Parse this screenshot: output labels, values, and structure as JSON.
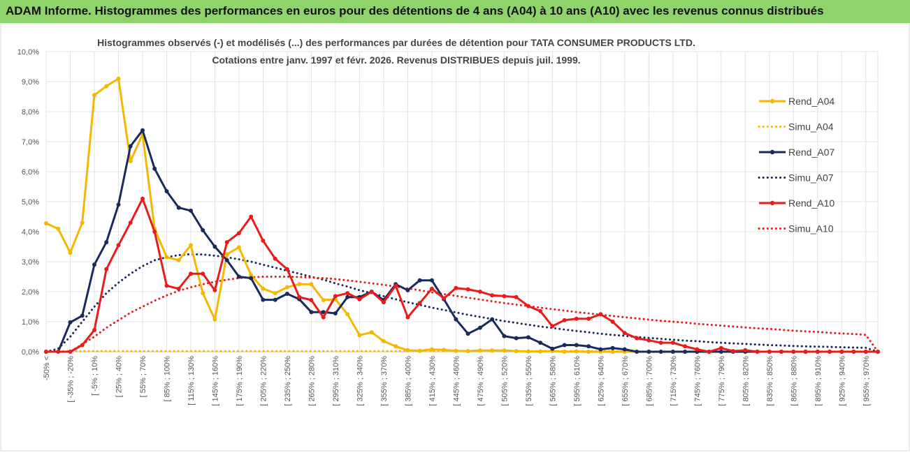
{
  "banner": {
    "title": "ADAM Informe. Histogrammes des performances en euros pour des détentions de 4 ans (A04) à 10 ans (A10) avec les revenus connus distribués"
  },
  "chart_data": {
    "type": "line",
    "title": "Histogrammes observés (-) et modélisés (...) des performances par durées de détention pour TATA CONSUMER PRODUCTS LTD.",
    "subtitle": "Cotations entre janv. 1997 et févr. 2026. Revenus DISTRIBUES depuis juil. 1999.",
    "xlabel": "",
    "ylabel": "",
    "ylim": [
      0,
      10
    ],
    "yticks": [
      "0,0%",
      "1,0%",
      "2,0%",
      "3,0%",
      "4,0%",
      "5,0%",
      "6,0%",
      "7,0%",
      "8,0%",
      "9,0%",
      "10,0%"
    ],
    "xticks": [
      "-50% <",
      "[ -35% ; -20%",
      "[ -5% ; 10%",
      "[ 25% ; 40%",
      "[ 55% ; 70%",
      "[ 85% ; 100%",
      "[ 115% ; 130%",
      "[ 145% ; 160%",
      "[ 175% ; 190%",
      "[ 205% ; 220%",
      "[ 235% ; 250%",
      "[ 265% ; 280%",
      "[ 295% ; 310%",
      "[ 325% ; 340%",
      "[ 355% ; 370%",
      "[ 385% ; 400%",
      "[ 415% ; 430%",
      "[ 445% ; 460%",
      "[ 475% ; 490%",
      "[ 505% ; 520%",
      "[ 535% ; 550%",
      "[ 565% ; 580%",
      "[ 595% ; 610%",
      "[ 625% ; 640%",
      "[ 655% ; 670%",
      "[ 685% ; 700%",
      "[ 715% ; 730%",
      "[ 745% ; 760%",
      "[ 775% ; 790%",
      "[ 805% ; 820%",
      "[ 835% ; 850%",
      "[ 865% ; 880%",
      "[ 895% ; 910%",
      "[ 925% ; 940%",
      "[ 955% ; 970%"
    ],
    "legend_position": "right",
    "series": [
      {
        "name": "Rend_A04",
        "color": "#f5b800",
        "style": "solid",
        "markers": true,
        "values": [
          4.28,
          4.1,
          3.3,
          4.3,
          8.55,
          8.85,
          9.1,
          6.35,
          7.25,
          4.1,
          3.15,
          3.05,
          3.55,
          1.95,
          1.08,
          3.25,
          3.48,
          2.55,
          2.1,
          1.95,
          2.15,
          2.25,
          2.25,
          1.72,
          1.75,
          1.25,
          0.55,
          0.65,
          0.35,
          0.18,
          0.05,
          0.03,
          0.08,
          0.06,
          0.03,
          0.02,
          0.04,
          0.04,
          0.04,
          0.02,
          0.01,
          0.01,
          0.02,
          0.0,
          0.01,
          0.0,
          0.0,
          0.0,
          0.0,
          0.0,
          0.0,
          0.0,
          0.0,
          0.0,
          0.0,
          0.0,
          0.0,
          0.0,
          0.0,
          0.0,
          0.0,
          0.0,
          0.0,
          0.0,
          0.0,
          0.0,
          0.0,
          0.0,
          0.0,
          0.0
        ]
      },
      {
        "name": "Simu_A04",
        "color": "#f5b800",
        "style": "dotted",
        "markers": false,
        "values": [
          0.02,
          0.02,
          0.02,
          0.02,
          0.02,
          0.02,
          0.02,
          0.02,
          0.02,
          0.02,
          0.02,
          0.02,
          0.02,
          0.02,
          0.02,
          0.02,
          0.02,
          0.02,
          0.02,
          0.02,
          0.02,
          0.02,
          0.02,
          0.02,
          0.02,
          0.02,
          0.02,
          0.02,
          0.02,
          0.02,
          0.02,
          0.02,
          0.02,
          0.02,
          0.02,
          0.02,
          0.02,
          0.02,
          0.02,
          0.02,
          0.02,
          0.02,
          0.02,
          0.02,
          0.02,
          0.02,
          0.02,
          0.02,
          0.01,
          0.01,
          0.01,
          0.01,
          0.01,
          0.01,
          0.01,
          0.01,
          0.01,
          0.01,
          0.01,
          0.01,
          0.01,
          0.01,
          0.01,
          0.01,
          0.01,
          0.01,
          0.01,
          0.01,
          0.01,
          0.01
        ]
      },
      {
        "name": "Rend_A07",
        "color": "#1a2a5a",
        "style": "solid",
        "markers": true,
        "values": [
          0.0,
          0.0,
          0.98,
          1.2,
          2.9,
          3.65,
          4.9,
          6.85,
          7.38,
          6.1,
          5.35,
          4.8,
          4.7,
          4.05,
          3.5,
          3.05,
          2.5,
          2.45,
          1.73,
          1.73,
          1.93,
          1.75,
          1.32,
          1.32,
          1.28,
          1.82,
          1.82,
          2.0,
          1.72,
          2.25,
          2.05,
          2.38,
          2.38,
          1.75,
          1.08,
          0.6,
          0.8,
          1.08,
          0.52,
          0.45,
          0.48,
          0.3,
          0.1,
          0.22,
          0.22,
          0.18,
          0.08,
          0.12,
          0.08,
          0.0,
          0.0,
          0.0,
          0.0,
          0.0,
          0.0,
          0.0,
          0.0,
          0.0,
          0.0,
          0.0,
          0.0,
          0.0,
          0.0,
          0.0,
          0.0,
          0.0,
          0.0,
          0.0,
          0.0,
          0.0
        ]
      },
      {
        "name": "Simu_A07",
        "color": "#1a2a5a",
        "style": "dotted",
        "markers": false,
        "values": [
          0.0,
          0.1,
          0.5,
          1.0,
          1.5,
          1.95,
          2.3,
          2.6,
          2.85,
          3.05,
          3.15,
          3.22,
          3.25,
          3.24,
          3.2,
          3.15,
          3.08,
          3.0,
          2.9,
          2.8,
          2.7,
          2.6,
          2.5,
          2.4,
          2.28,
          2.17,
          2.05,
          1.95,
          1.85,
          1.75,
          1.65,
          1.56,
          1.47,
          1.39,
          1.31,
          1.23,
          1.16,
          1.09,
          1.02,
          0.96,
          0.9,
          0.84,
          0.79,
          0.74,
          0.69,
          0.65,
          0.6,
          0.56,
          0.53,
          0.49,
          0.46,
          0.43,
          0.4,
          0.37,
          0.35,
          0.32,
          0.3,
          0.28,
          0.26,
          0.24,
          0.22,
          0.21,
          0.19,
          0.18,
          0.17,
          0.16,
          0.15,
          0.14,
          0.13,
          0.0
        ]
      },
      {
        "name": "Rend_A10",
        "color": "#e81c1c",
        "style": "solid",
        "markers": true,
        "values": [
          0.0,
          0.0,
          0.0,
          0.22,
          0.72,
          2.75,
          3.55,
          4.3,
          5.1,
          4.0,
          2.2,
          2.1,
          2.6,
          2.6,
          2.05,
          3.65,
          3.95,
          4.5,
          3.7,
          3.1,
          2.75,
          1.82,
          1.72,
          1.15,
          1.85,
          1.95,
          1.75,
          2.0,
          1.65,
          2.2,
          1.15,
          1.62,
          2.1,
          1.78,
          2.12,
          2.08,
          2.0,
          1.88,
          1.85,
          1.82,
          1.52,
          1.35,
          0.85,
          1.05,
          1.1,
          1.1,
          1.25,
          1.0,
          0.62,
          0.45,
          0.38,
          0.3,
          0.3,
          0.18,
          0.08,
          0.0,
          0.12,
          0.02,
          0.05,
          0.0,
          0.0,
          0.0,
          0.0,
          0.0,
          0.0,
          0.0,
          0.0,
          0.0,
          0.0,
          0.0
        ]
      },
      {
        "name": "Simu_A10",
        "color": "#e81c1c",
        "style": "dotted",
        "markers": false,
        "values": [
          0.0,
          0.0,
          0.0,
          0.25,
          0.5,
          0.8,
          1.05,
          1.3,
          1.5,
          1.7,
          1.88,
          2.03,
          2.15,
          2.25,
          2.33,
          2.4,
          2.45,
          2.48,
          2.5,
          2.5,
          2.5,
          2.49,
          2.47,
          2.45,
          2.42,
          2.38,
          2.33,
          2.28,
          2.23,
          2.17,
          2.11,
          2.05,
          1.98,
          1.92,
          1.86,
          1.8,
          1.74,
          1.68,
          1.62,
          1.57,
          1.52,
          1.47,
          1.42,
          1.37,
          1.32,
          1.28,
          1.23,
          1.19,
          1.15,
          1.11,
          1.07,
          1.03,
          1.0,
          0.97,
          0.93,
          0.9,
          0.87,
          0.84,
          0.81,
          0.78,
          0.76,
          0.73,
          0.7,
          0.68,
          0.66,
          0.63,
          0.61,
          0.59,
          0.56,
          0.0
        ]
      }
    ]
  }
}
